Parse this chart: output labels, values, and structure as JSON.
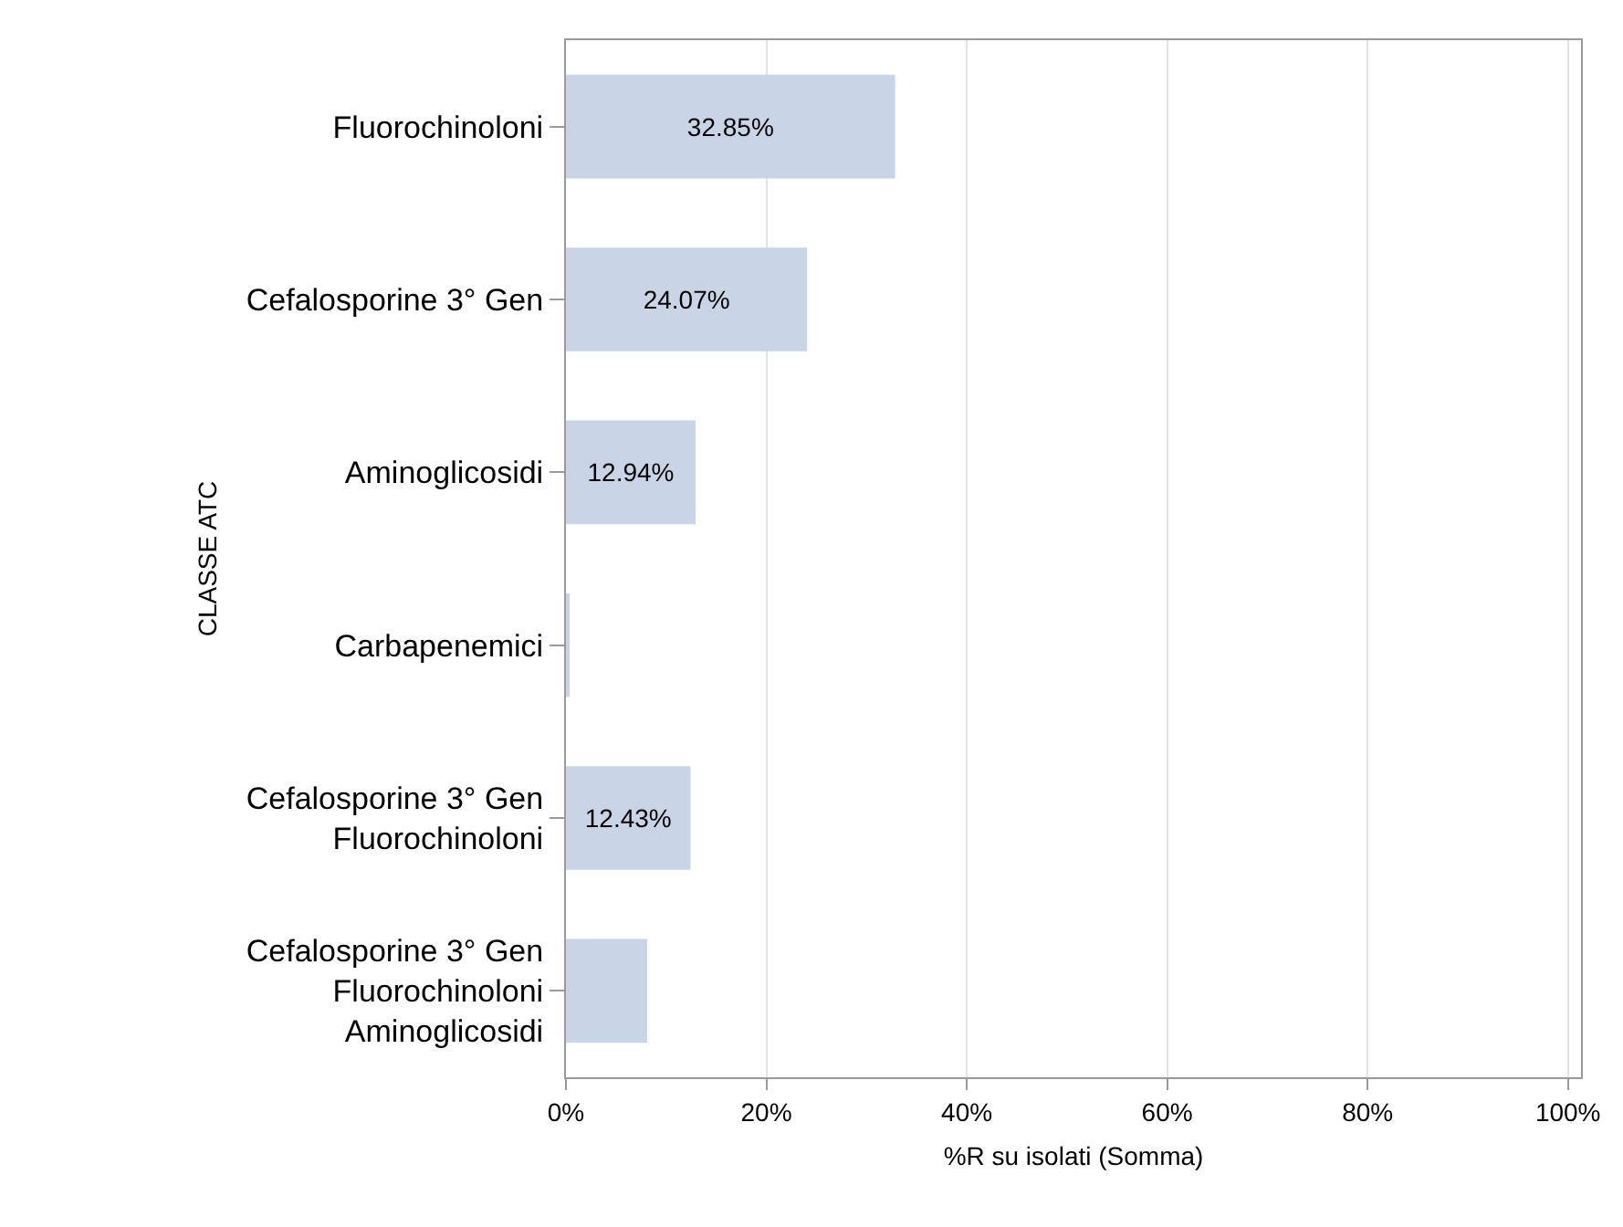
{
  "chart_data": {
    "type": "bar",
    "orientation": "horizontal",
    "xlabel": "%R su isolati (Somma)",
    "ylabel": "CLASSE ATC",
    "categories": [
      "Fluorochinoloni",
      "Cefalosporine 3° Gen",
      "Aminoglicosidi",
      "Carbapenemici",
      "Cefalosporine 3° Gen\nFluorochinoloni",
      "Cefalosporine 3° Gen\nFluorochinoloni\nAminoglicosidi"
    ],
    "values": [
      32.85,
      24.07,
      12.94,
      0.2,
      12.43,
      8.1
    ],
    "value_labels": [
      "32.85%",
      "24.07%",
      "12.94%",
      null,
      "12.43%",
      null
    ],
    "color": "#c9d5e6",
    "xlim": [
      0,
      101.3
    ],
    "xticks": [
      {
        "value": 0,
        "label": "0%"
      },
      {
        "value": 20,
        "label": "20%"
      },
      {
        "value": 40,
        "label": "40%"
      },
      {
        "value": 60,
        "label": "60%"
      },
      {
        "value": 80,
        "label": "80%"
      },
      {
        "value": 100,
        "label": "100%"
      }
    ],
    "grid": "x"
  }
}
